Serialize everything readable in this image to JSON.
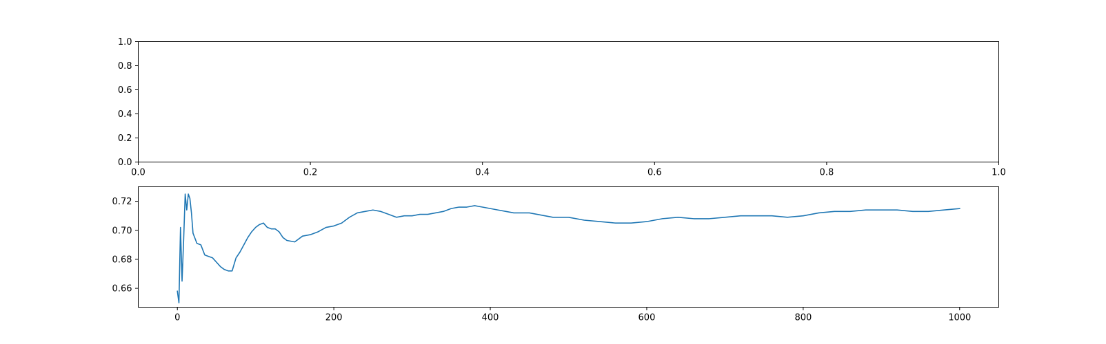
{
  "chart_data": [
    {
      "type": "line",
      "title": "",
      "xlabel": "",
      "ylabel": "",
      "xlim": [
        0,
        1
      ],
      "ylim": [
        0,
        1
      ],
      "xticks": [
        "0.0",
        "0.2",
        "0.4",
        "0.6",
        "0.8",
        "1.0"
      ],
      "yticks": [
        "0.0",
        "0.2",
        "0.4",
        "0.6",
        "0.8",
        "1.0"
      ],
      "grid": false,
      "series": []
    },
    {
      "type": "line",
      "title": "",
      "xlabel": "",
      "ylabel": "",
      "xlim": [
        -50,
        1050
      ],
      "ylim": [
        0.647,
        0.73
      ],
      "xticks": [
        "0",
        "200",
        "400",
        "600",
        "800",
        "1000"
      ],
      "yticks": [
        "0.66",
        "0.68",
        "0.70",
        "0.72"
      ],
      "grid": false,
      "series": [
        {
          "color": "#1f77b4",
          "x": [
            0,
            2,
            4,
            6,
            8,
            10,
            12,
            14,
            16,
            18,
            20,
            25,
            30,
            35,
            40,
            45,
            50,
            55,
            60,
            65,
            70,
            75,
            80,
            85,
            90,
            95,
            100,
            105,
            110,
            115,
            120,
            125,
            130,
            135,
            140,
            150,
            160,
            170,
            180,
            190,
            200,
            210,
            220,
            230,
            240,
            250,
            260,
            270,
            280,
            290,
            300,
            310,
            320,
            330,
            340,
            350,
            360,
            370,
            380,
            390,
            400,
            410,
            420,
            430,
            440,
            450,
            460,
            470,
            480,
            490,
            500,
            520,
            540,
            560,
            580,
            600,
            620,
            640,
            660,
            680,
            700,
            720,
            740,
            760,
            780,
            800,
            820,
            840,
            860,
            880,
            900,
            920,
            940,
            960,
            980,
            1000
          ],
          "y": [
            0.658,
            0.65,
            0.702,
            0.665,
            0.693,
            0.725,
            0.714,
            0.725,
            0.722,
            0.712,
            0.698,
            0.691,
            0.69,
            0.683,
            0.682,
            0.681,
            0.678,
            0.675,
            0.673,
            0.672,
            0.672,
            0.681,
            0.685,
            0.69,
            0.695,
            0.699,
            0.702,
            0.704,
            0.705,
            0.702,
            0.701,
            0.701,
            0.699,
            0.695,
            0.693,
            0.692,
            0.696,
            0.697,
            0.699,
            0.702,
            0.703,
            0.705,
            0.709,
            0.712,
            0.713,
            0.714,
            0.713,
            0.711,
            0.709,
            0.71,
            0.71,
            0.711,
            0.711,
            0.712,
            0.713,
            0.715,
            0.716,
            0.716,
            0.717,
            0.716,
            0.715,
            0.714,
            0.713,
            0.712,
            0.712,
            0.712,
            0.711,
            0.71,
            0.709,
            0.709,
            0.709,
            0.707,
            0.706,
            0.705,
            0.705,
            0.706,
            0.708,
            0.709,
            0.708,
            0.708,
            0.709,
            0.71,
            0.71,
            0.71,
            0.709,
            0.71,
            0.712,
            0.713,
            0.713,
            0.714,
            0.714,
            0.714,
            0.713,
            0.713,
            0.714,
            0.715
          ]
        }
      ]
    }
  ]
}
